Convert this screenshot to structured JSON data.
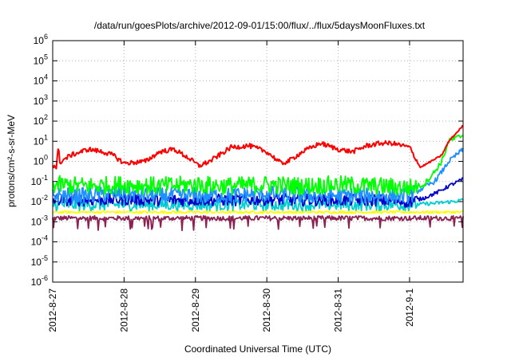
{
  "chart_data": {
    "type": "line",
    "title": "/data/run/goesPlots/archive/2012-09-01/15:00/flux/../flux/5daysMoonFluxes.txt",
    "xlabel": "Coordinated Universal Time (UTC)",
    "ylabel": "protons/cm²-s-sr-MeV",
    "y_scale": "log",
    "ylim": [
      "1e-6",
      "1e6"
    ],
    "y_tick_exponents": [
      "6",
      "5",
      "4",
      "3",
      "2",
      "1",
      "0",
      "-1",
      "-2",
      "-3",
      "-4",
      "-5",
      "-6"
    ],
    "xlim": [
      "2012-8-27",
      "2012-9-1 18:00"
    ],
    "x_ticks": [
      "2012-8-27",
      "2012-8-28",
      "2012-8-29",
      "2012-8-30",
      "2012-8-31",
      "2012-9-1"
    ],
    "grid": true,
    "legend": "none",
    "series": [
      {
        "color": "#ff0000",
        "x_days": [
          0,
          0.05,
          0.08,
          0.1,
          0.25,
          0.5,
          0.7,
          0.85,
          1.0,
          1.3,
          1.5,
          1.7,
          1.9,
          2.05,
          2.2,
          2.5,
          2.75,
          3.0,
          3.2,
          3.3,
          3.5,
          3.75,
          4.0,
          4.2,
          4.4,
          4.6,
          4.75,
          5.0,
          5.15,
          5.3,
          5.45,
          5.55,
          5.75
        ],
        "values": [
          0.7,
          0.5,
          5,
          0.9,
          2,
          4,
          3,
          2,
          0.8,
          1.0,
          3,
          4,
          1.5,
          0.6,
          1,
          5,
          6,
          3,
          0.8,
          1,
          3,
          8,
          4,
          3,
          6,
          8,
          8,
          5,
          0.5,
          1,
          2,
          10,
          60
        ]
      },
      {
        "color": "#00ff00",
        "x_days": [
          0,
          0.5,
          1,
          1.5,
          2,
          2.5,
          3,
          3.5,
          4,
          4.5,
          5,
          5.2,
          5.35,
          5.45,
          5.55,
          5.75
        ],
        "values": [
          0.07,
          0.06,
          0.07,
          0.06,
          0.07,
          0.06,
          0.07,
          0.06,
          0.07,
          0.06,
          0.05,
          0.07,
          0.3,
          1,
          10,
          20
        ]
      },
      {
        "color": "#1e90ff",
        "x_days": [
          0,
          0.5,
          1,
          1.5,
          2,
          2.5,
          3,
          3.5,
          4,
          4.5,
          5,
          5.2,
          5.35,
          5.45,
          5.55,
          5.75
        ],
        "values": [
          0.02,
          0.02,
          0.025,
          0.02,
          0.02,
          0.02,
          0.025,
          0.02,
          0.02,
          0.02,
          0.02,
          0.05,
          0.1,
          0.3,
          1,
          4
        ]
      },
      {
        "color": "#0000cd",
        "x_days": [
          0,
          0.5,
          1,
          1.5,
          2,
          2.5,
          3,
          3.5,
          4,
          4.5,
          5,
          5.2,
          5.4,
          5.55,
          5.75
        ],
        "values": [
          0.012,
          0.012,
          0.013,
          0.012,
          0.012,
          0.012,
          0.013,
          0.012,
          0.012,
          0.012,
          0.01,
          0.015,
          0.03,
          0.06,
          0.13
        ]
      },
      {
        "color": "#00ced1",
        "x_days": [
          0,
          0.5,
          1,
          1.5,
          2,
          2.5,
          3,
          3.5,
          4,
          4.5,
          5,
          5.3,
          5.6,
          5.75
        ],
        "values": [
          0.007,
          0.007,
          0.007,
          0.007,
          0.007,
          0.007,
          0.007,
          0.007,
          0.007,
          0.007,
          0.007,
          0.008,
          0.01,
          0.012
        ]
      },
      {
        "color": "#ffff00",
        "x_days": [
          0,
          1,
          2,
          3,
          4,
          5,
          5.75
        ],
        "values": [
          0.003,
          0.003,
          0.003,
          0.003,
          0.003,
          0.003,
          0.003
        ]
      },
      {
        "color": "#8b2252",
        "x_days": [
          0,
          1,
          2,
          3,
          4,
          5,
          5.75
        ],
        "values": [
          0.0015,
          0.0015,
          0.0015,
          0.0015,
          0.0015,
          0.0015,
          0.0015
        ]
      }
    ]
  }
}
